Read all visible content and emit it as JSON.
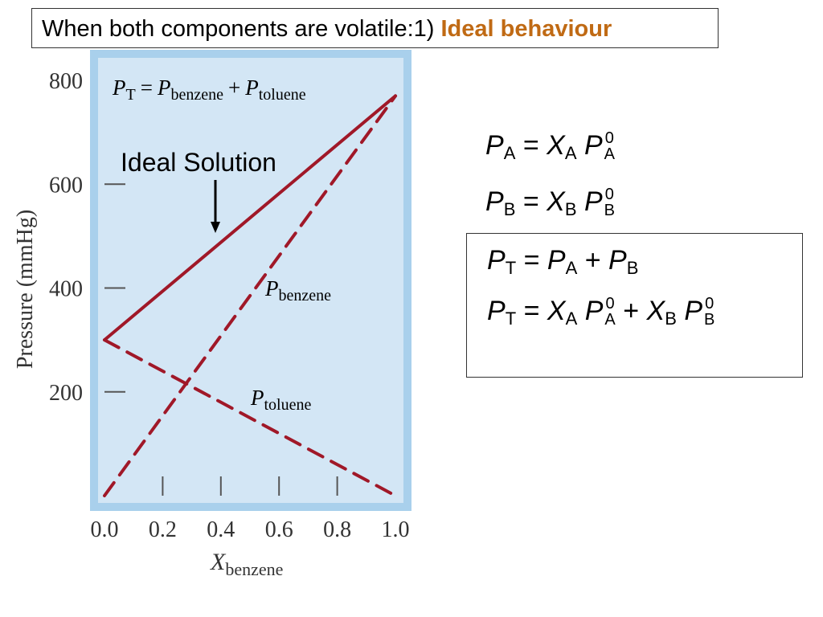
{
  "title": {
    "prefix": "When both components are volatile:1) ",
    "highlight": "Ideal behaviour",
    "highlight_color": "#c06a14"
  },
  "equations": {
    "pa": {
      "lhs": "P",
      "lhs_sub": "A",
      "eq": "=",
      "x": "X",
      "x_sub": "A",
      "p": "P",
      "sup": "0",
      "sub": "A"
    },
    "pb": {
      "lhs": "P",
      "lhs_sub": "B",
      "eq": "=",
      "x": "X",
      "x_sub": "B",
      "p": "P",
      "sup": "0",
      "sub": "B"
    },
    "pt1": {
      "lhs": "P",
      "lhs_sub": "T",
      "eq": "=",
      "a": "P",
      "a_sub": "A",
      "plus": "+",
      "b": "P",
      "b_sub": "B"
    },
    "pt2": {
      "lhs": "P",
      "lhs_sub": "T",
      "eq": "=",
      "xa": "X",
      "xa_sub": "A",
      "pa": "P",
      "pa_sup": "0",
      "pa_sub": "A",
      "plus": "+",
      "xb": "X",
      "xb_sub": "B",
      "pb": "P",
      "pb_sup": "0",
      "pb_sub": "B"
    }
  },
  "chart_data": {
    "type": "line",
    "ylabel": "Pressure (mmHg)",
    "xlabel_main": "X",
    "xlabel_sub": "benzene",
    "xlim": [
      0,
      1
    ],
    "ylim": [
      0,
      800
    ],
    "x_ticks": [
      "0.0",
      "0.2",
      "0.4",
      "0.6",
      "0.8",
      "1.0"
    ],
    "y_ticks": [
      {
        "value": 200,
        "label": "200"
      },
      {
        "value": 400,
        "label": "400"
      },
      {
        "value": 600,
        "label": "600"
      },
      {
        "value": 800,
        "label": "800"
      }
    ],
    "plot_bg": "#d3e6f5",
    "frame_color": "#a9d0ec",
    "line_color": "#a01828",
    "series": [
      {
        "name": "P_T",
        "style": "solid",
        "x": [
          0,
          1
        ],
        "y": [
          300,
          770
        ]
      },
      {
        "name": "P_benzene",
        "style": "dashed",
        "x": [
          0,
          1
        ],
        "y": [
          0,
          770
        ]
      },
      {
        "name": "P_toluene",
        "style": "dashed",
        "x": [
          0,
          1
        ],
        "y": [
          300,
          0
        ]
      }
    ],
    "annotations": {
      "formula": {
        "p": "P",
        "t_sub": "T",
        "eq": "=",
        "benz_sub": "benzene",
        "plus": "+",
        "tol_sub": "toluene"
      },
      "ideal_solution": "Ideal Solution",
      "benzene_label": {
        "p": "P",
        "sub": "benzene"
      },
      "toluene_label": {
        "p": "P",
        "sub": "toluene"
      }
    }
  }
}
